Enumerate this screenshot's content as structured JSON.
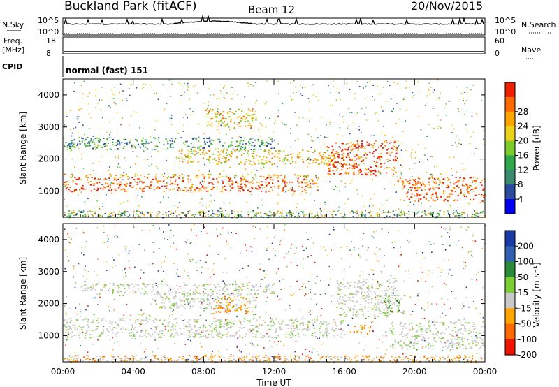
{
  "header": {
    "station": "Buckland Park (fitACF)",
    "beam": "Beam 12",
    "date": "20/Nov/2015"
  },
  "status_panels": {
    "nsky_label": "N.Sky",
    "nsky_ticks": [
      "10^5",
      "10^0"
    ],
    "nsearch_label": "N.Search",
    "freq_label": "Freq.",
    "freq_unit": "[MHz]",
    "freq_ticks": [
      "18",
      "8"
    ],
    "nave_label": "Nave",
    "nave_ticks": [
      "60",
      "0"
    ],
    "cpid_label": "CPID",
    "cpid_value": "normal (fast) 151"
  },
  "chart_data": [
    {
      "type": "heatmap",
      "name": "power-panel",
      "ylabel": "Slant Range [km]",
      "ylim": [
        180,
        4500
      ],
      "y_ticks": [
        "1000",
        "2000",
        "3000",
        "4000"
      ],
      "colorbar_label": "Power [dB]",
      "colorbar_ticks": [
        "4",
        "8",
        "12",
        "16",
        "20",
        "24",
        "28"
      ],
      "colorbar_colors": [
        "#0000ee",
        "#2b4aa0",
        "#3a8a70",
        "#2ea84a",
        "#7ecb2c",
        "#e8d21a",
        "#ffa500",
        "#ff6a00",
        "#ee2000"
      ],
      "bands": [
        {
          "from_hr": 0,
          "to_hr": 14.5,
          "range_km": [
            1000,
            1450
          ],
          "level": "high"
        },
        {
          "from_hr": 0,
          "to_hr": 14.5,
          "range_km": [
            1450,
            1550
          ],
          "level": "medium"
        },
        {
          "from_hr": 0,
          "to_hr": 12,
          "range_km": [
            2300,
            2700
          ],
          "level": "low"
        },
        {
          "from_hr": 6.5,
          "to_hr": 15.5,
          "range_km": [
            1850,
            2300
          ],
          "level": "medium"
        },
        {
          "from_hr": 8,
          "to_hr": 11,
          "range_km": [
            3000,
            3600
          ],
          "level": "medium"
        },
        {
          "from_hr": 15,
          "to_hr": 19,
          "range_km": [
            1500,
            2600
          ],
          "level": "high"
        },
        {
          "from_hr": 19,
          "to_hr": 24,
          "range_km": [
            700,
            1450
          ],
          "level": "high"
        }
      ]
    },
    {
      "type": "heatmap",
      "name": "velocity-panel",
      "ylabel": "Slant Range [km]",
      "ylim": [
        180,
        4500
      ],
      "y_ticks": [
        "1000",
        "2000",
        "3000",
        "4000"
      ],
      "colorbar_label": "Velocity [m s⁻¹]",
      "colorbar_ticks": [
        "200",
        "100",
        "50",
        "15",
        "-15",
        "-50",
        "-100",
        "-200"
      ],
      "colorbar_colors": [
        "#1a3aa8",
        "#3060b0",
        "#2a8a3a",
        "#7ccf30",
        "#c8c8c8",
        "#ffa500",
        "#ff6a00",
        "#ee1500"
      ],
      "bands": [
        {
          "from_hr": 0,
          "to_hr": 16,
          "range_km": [
            950,
            1550
          ],
          "level": "ground"
        },
        {
          "from_hr": 1,
          "to_hr": 12,
          "range_km": [
            2300,
            2650
          ],
          "level": "ground"
        },
        {
          "from_hr": 5.5,
          "to_hr": 11,
          "range_km": [
            1850,
            2350
          ],
          "level": "ground"
        },
        {
          "from_hr": 15.5,
          "to_hr": 19,
          "range_km": [
            1600,
            2800
          ],
          "level": "ground"
        },
        {
          "from_hr": 18.5,
          "to_hr": 24,
          "range_km": [
            600,
            1450
          ],
          "level": "ground"
        },
        {
          "from_hr": 8.5,
          "to_hr": 10.5,
          "range_km": [
            1700,
            2250
          ],
          "level": "negative"
        },
        {
          "from_hr": 16.5,
          "to_hr": 17.5,
          "range_km": [
            1050,
            1350
          ],
          "level": "negative"
        },
        {
          "from_hr": 18.2,
          "to_hr": 19.5,
          "range_km": [
            1700,
            2300
          ],
          "level": "positive"
        }
      ]
    }
  ],
  "x_axis": {
    "xlabel": "Time UT",
    "x_ticks": [
      "00:00",
      "04:00",
      "08:00",
      "12:00",
      "16:00",
      "20:00",
      "00:00"
    ],
    "xlim_hours": [
      0,
      24
    ]
  }
}
